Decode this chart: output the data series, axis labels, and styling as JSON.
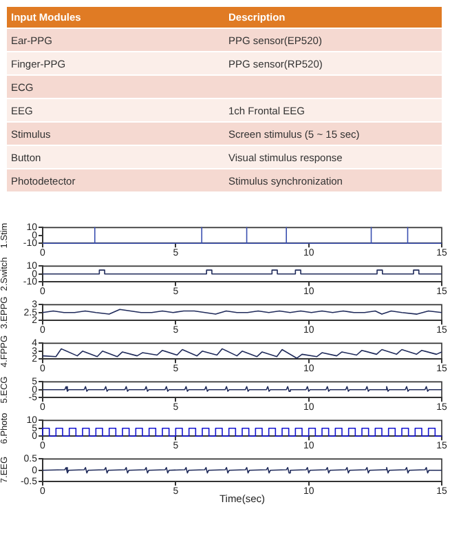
{
  "chart_data": [
    {
      "type": "other",
      "title": "Input Modules",
      "subtitle": "Description",
      "categories": [
        "Ear-PPG",
        "Finger-PPG",
        "ECG",
        "EEG",
        "Stimulus",
        "Button",
        "Photodetector"
      ],
      "annotations": [
        {
          "text": "PPG sensor(EP520)",
          "x": "Ear-PPG"
        },
        {
          "text": "PPG sensor(RP520)",
          "x": "Finger-PPG"
        },
        {
          "text": "1ch Frontal EEG",
          "x": "EEG"
        },
        {
          "text": "Screen stimulus (5 ~ 15 sec)",
          "x": "Stimulus"
        },
        {
          "text": "Visual stimulus response",
          "x": "Button"
        },
        {
          "text": "Stimulus synchronization",
          "x": "Photodetector"
        }
      ]
    },
    {
      "type": "line",
      "ylabel": "1.Stim",
      "xlim": [
        0,
        15
      ],
      "xticks": [
        0,
        5,
        10,
        15
      ],
      "ylim": [
        -10,
        10
      ],
      "yticks": [
        -10,
        0,
        10
      ],
      "series": [
        {
          "color": "#3a4fb0",
          "x": [
            0,
            1.96,
            1.96,
            1.96,
            5.98,
            5.98,
            5.98,
            7.67,
            7.67,
            7.67,
            9.16,
            9.16,
            9.16,
            12.35,
            12.35,
            12.35,
            13.72,
            13.72,
            13.72,
            15
          ],
          "values": [
            -10,
            -10,
            10,
            -10,
            -10,
            10,
            -10,
            -10,
            10,
            -10,
            -10,
            10,
            -10,
            -10,
            10,
            -10,
            -10,
            10,
            -10,
            -10
          ]
        }
      ]
    },
    {
      "type": "line",
      "ylabel": "2.Switch",
      "xlim": [
        0,
        15
      ],
      "xticks": [
        0,
        5,
        10,
        15
      ],
      "ylim": [
        -10,
        10
      ],
      "yticks": [
        -10,
        0,
        10
      ],
      "series": [
        {
          "color": "#1f2a5a",
          "x": [
            0,
            2.13,
            2.13,
            2.33,
            2.33,
            6.16,
            6.16,
            6.36,
            6.36,
            8.62,
            8.62,
            8.82,
            8.82,
            9.5,
            9.5,
            9.7,
            9.7,
            12.57,
            12.57,
            12.77,
            12.77,
            13.94,
            13.94,
            14.14,
            14.14,
            15
          ],
          "values": [
            0,
            0,
            5,
            5,
            0,
            0,
            5,
            5,
            0,
            0,
            5,
            5,
            0,
            0,
            5,
            5,
            0,
            0,
            5,
            5,
            0,
            0,
            5,
            5,
            0,
            0
          ]
        }
      ]
    },
    {
      "type": "line",
      "ylabel": "3.EPPG",
      "xlim": [
        0,
        15
      ],
      "xticks": [
        0,
        5,
        10,
        15
      ],
      "ylim": [
        2,
        3
      ],
      "yticks": [
        2,
        2.5,
        3
      ],
      "series": [
        {
          "color": "#1f2a5a",
          "x": [
            0,
            0.4,
            0.8,
            1.2,
            1.6,
            2.0,
            2.5,
            2.9,
            3.3,
            3.7,
            4.1,
            4.5,
            4.9,
            5.3,
            5.7,
            6.1,
            6.5,
            6.9,
            7.3,
            7.7,
            8.1,
            8.5,
            8.9,
            9.3,
            9.7,
            10.1,
            10.5,
            10.9,
            11.3,
            11.7,
            12.1,
            12.5,
            12.75,
            13.1,
            13.5,
            14.07,
            14.5,
            15
          ],
          "values": [
            2.5,
            2.6,
            2.5,
            2.5,
            2.6,
            2.5,
            2.4,
            2.7,
            2.6,
            2.5,
            2.5,
            2.6,
            2.5,
            2.6,
            2.6,
            2.5,
            2.4,
            2.6,
            2.5,
            2.5,
            2.6,
            2.5,
            2.6,
            2.5,
            2.6,
            2.5,
            2.6,
            2.5,
            2.6,
            2.5,
            2.5,
            2.6,
            2.4,
            2.6,
            2.5,
            2.4,
            2.6,
            2.5
          ]
        }
      ]
    },
    {
      "type": "line",
      "ylabel": "4.FPPG",
      "xlim": [
        0,
        15
      ],
      "xticks": [
        0,
        5,
        10,
        15
      ],
      "ylim": [
        2,
        4
      ],
      "yticks": [
        2,
        3,
        4
      ],
      "series": [
        {
          "color": "#1f2a5a",
          "x": [
            0,
            0.5,
            0.7,
            1.3,
            1.5,
            2.05,
            2.25,
            2.8,
            3.0,
            3.55,
            3.75,
            4.3,
            4.5,
            5.05,
            5.25,
            5.8,
            6.0,
            6.55,
            6.75,
            7.3,
            7.5,
            8.05,
            8.25,
            8.8,
            9.0,
            9.55,
            9.75,
            10.3,
            10.5,
            11.05,
            11.25,
            11.8,
            12.0,
            12.55,
            12.75,
            13.3,
            13.5,
            14.05,
            14.25,
            14.8,
            15
          ],
          "values": [
            2.4,
            2.3,
            3.3,
            2.4,
            3.0,
            2.3,
            3.0,
            2.3,
            2.9,
            2.4,
            2.8,
            2.5,
            3.1,
            2.5,
            3.2,
            2.4,
            3.0,
            2.5,
            3.3,
            2.4,
            3.0,
            2.3,
            2.9,
            2.3,
            3.2,
            2.1,
            2.6,
            2.3,
            2.8,
            2.4,
            2.9,
            2.5,
            3.1,
            2.6,
            3.2,
            2.6,
            3.2,
            2.6,
            3.1,
            2.6,
            2.9
          ]
        }
      ]
    },
    {
      "type": "line",
      "ylabel": "5.ECG",
      "xlim": [
        0,
        15
      ],
      "xticks": [
        0,
        5,
        10,
        15
      ],
      "ylim": [
        -5,
        5
      ],
      "yticks": [
        -5,
        0,
        5
      ],
      "series": [
        {
          "color": "#1f2a5a",
          "x": [
            0,
            0.83,
            0.88,
            0.93,
            0.98,
            1.56,
            1.61,
            1.66,
            1.71,
            2.32,
            2.37,
            2.42,
            2.47,
            3.09,
            3.14,
            3.19,
            3.24,
            3.84,
            3.89,
            3.94,
            3.99,
            4.6,
            4.65,
            4.7,
            4.75,
            5.34,
            5.39,
            5.44,
            5.49,
            6.09,
            6.14,
            6.19,
            6.24,
            6.86,
            6.91,
            6.96,
            7.01,
            7.62,
            7.67,
            7.72,
            7.77,
            8.41,
            8.46,
            8.51,
            8.56,
            9.16,
            9.21,
            9.26,
            9.31,
            9.9,
            9.95,
            10,
            10.05,
            10.65,
            10.7,
            10.75,
            10.8,
            11.39,
            11.44,
            11.49,
            11.54,
            12.14,
            12.19,
            12.24,
            12.29,
            12.88,
            12.93,
            12.98,
            13.03,
            13.63,
            13.68,
            13.73,
            13.78,
            14.37,
            14.42,
            14.47,
            14.52,
            15
          ],
          "values": [
            0,
            0,
            2,
            -1,
            0,
            0,
            2,
            -1,
            0,
            0,
            2,
            -1,
            0,
            0,
            2,
            -1,
            0,
            0,
            2,
            -1,
            0,
            0,
            2,
            -1,
            0,
            0,
            2,
            -1,
            0,
            0,
            2,
            -1,
            0,
            0,
            2,
            -1,
            0,
            0,
            2,
            -1,
            0,
            0,
            2,
            -1,
            0,
            0,
            2,
            -1,
            0,
            0,
            2,
            -1,
            0,
            0,
            2,
            -1,
            0,
            0,
            2,
            -1,
            0,
            0,
            2,
            -1,
            0,
            0,
            2,
            -1,
            0,
            0,
            2,
            -1,
            0,
            0,
            2,
            -1,
            0,
            0
          ]
        }
      ]
    },
    {
      "type": "line",
      "ylabel": "6.Photo",
      "xlim": [
        0,
        15
      ],
      "xticks": [
        0,
        5,
        10,
        15
      ],
      "ylim": [
        0,
        10
      ],
      "yticks": [
        0,
        5,
        10
      ],
      "series": [
        {
          "color": "#1414d0",
          "x": [
            0,
            0,
            0.25,
            0.25,
            0.5,
            0.5,
            0.75,
            0.75,
            1,
            1,
            1.25,
            1.25,
            1.5,
            1.5,
            1.75,
            1.75,
            2,
            2,
            2.25,
            2.25,
            2.5,
            2.5,
            2.75,
            2.75,
            3,
            3,
            3.25,
            3.25,
            3.5,
            3.5,
            3.75,
            3.75,
            4,
            4,
            4.25,
            4.25,
            4.5,
            4.5,
            4.75,
            4.75,
            5,
            5,
            5.25,
            5.25,
            5.5,
            5.5,
            5.75,
            5.75,
            6,
            6,
            6.25,
            6.25,
            6.5,
            6.5,
            6.75,
            6.75,
            7,
            7,
            7.25,
            7.25,
            7.5,
            7.5,
            7.75,
            7.75,
            8,
            8,
            8.25,
            8.25,
            8.5,
            8.5,
            8.75,
            8.75,
            9,
            9,
            9.25,
            9.25,
            9.5,
            9.5,
            9.75,
            9.75,
            10,
            10,
            10.25,
            10.25,
            10.5,
            10.5,
            10.75,
            10.75,
            11,
            11,
            11.25,
            11.25,
            11.5,
            11.5,
            11.75,
            11.75,
            12,
            12,
            12.25,
            12.25,
            12.5,
            12.5,
            12.75,
            12.75,
            13,
            13,
            13.25,
            13.25,
            13.5,
            13.5,
            13.75,
            13.75,
            14,
            14,
            14.25,
            14.25,
            14.5,
            14.5,
            14.75,
            14.75,
            15
          ],
          "values": [
            0,
            5,
            5,
            0,
            0,
            5,
            5,
            0,
            0,
            5,
            5,
            0,
            0,
            5,
            5,
            0,
            0,
            5,
            5,
            0,
            0,
            5,
            5,
            0,
            0,
            5,
            5,
            0,
            0,
            5,
            5,
            0,
            0,
            5,
            5,
            0,
            0,
            5,
            5,
            0,
            0,
            5,
            5,
            0,
            0,
            5,
            5,
            0,
            0,
            5,
            5,
            0,
            0,
            5,
            5,
            0,
            0,
            5,
            5,
            0,
            0,
            5,
            5,
            0,
            0,
            5,
            5,
            0,
            0,
            5,
            5,
            0,
            0,
            5,
            5,
            0,
            0,
            5,
            5,
            0,
            0,
            5,
            5,
            0,
            0,
            5,
            5,
            0,
            0,
            5,
            5,
            0,
            0,
            5,
            5,
            0,
            0,
            5,
            5,
            0,
            0,
            5,
            5,
            0,
            0,
            5,
            5,
            0,
            0,
            5,
            5,
            0,
            0,
            5,
            5,
            0,
            0,
            5,
            5,
            0,
            0
          ]
        }
      ]
    },
    {
      "type": "line",
      "ylabel": "7.EEG",
      "xlabel": "Time(sec)",
      "xlim": [
        0,
        15
      ],
      "xticks": [
        0,
        5,
        10,
        15
      ],
      "ylim": [
        -0.5,
        0.5
      ],
      "yticks": [
        -0.5,
        0,
        0.5
      ],
      "series": [
        {
          "color": "#1f2a5a",
          "x": [
            0,
            0.83,
            0.88,
            0.93,
            0.98,
            1.56,
            1.61,
            1.66,
            1.71,
            2.32,
            2.37,
            2.42,
            2.47,
            3.09,
            3.14,
            3.19,
            3.24,
            3.84,
            3.89,
            3.94,
            3.99,
            4.6,
            4.65,
            4.7,
            4.75,
            5.34,
            5.39,
            5.44,
            5.49,
            6.09,
            6.14,
            6.19,
            6.24,
            6.86,
            6.91,
            6.96,
            7.01,
            7.62,
            7.67,
            7.72,
            7.77,
            8.41,
            8.46,
            8.51,
            8.56,
            9.16,
            9.21,
            9.26,
            9.31,
            9.9,
            9.95,
            10,
            10.05,
            10.65,
            10.7,
            10.75,
            10.8,
            11.39,
            11.44,
            11.49,
            11.54,
            12.14,
            12.19,
            12.24,
            12.29,
            12.88,
            12.93,
            12.98,
            13.03,
            13.63,
            13.68,
            13.73,
            13.78,
            14.37,
            14.42,
            14.47,
            14.52,
            15
          ],
          "values": [
            0,
            0.02,
            0.12,
            -0.12,
            0,
            0.02,
            0.12,
            -0.12,
            0,
            0.02,
            0.12,
            -0.12,
            0,
            0.02,
            0.12,
            -0.12,
            0,
            0.02,
            0.12,
            -0.12,
            0,
            0.02,
            0.12,
            -0.12,
            0,
            0.02,
            0.12,
            -0.12,
            0,
            0.02,
            0.12,
            -0.12,
            0,
            0.02,
            0.12,
            -0.12,
            0,
            0.02,
            0.12,
            -0.12,
            0,
            0.02,
            0.12,
            -0.12,
            0,
            0.02,
            0.12,
            -0.12,
            0,
            0.02,
            0.12,
            -0.12,
            0,
            0.02,
            0.12,
            -0.12,
            0,
            0.02,
            0.12,
            -0.12,
            0,
            0.02,
            0.12,
            -0.12,
            0,
            0.02,
            0.12,
            -0.12,
            0,
            0.02,
            0.12,
            -0.12,
            0,
            0.02,
            0.12,
            -0.12,
            0,
            0
          ]
        }
      ]
    }
  ]
}
